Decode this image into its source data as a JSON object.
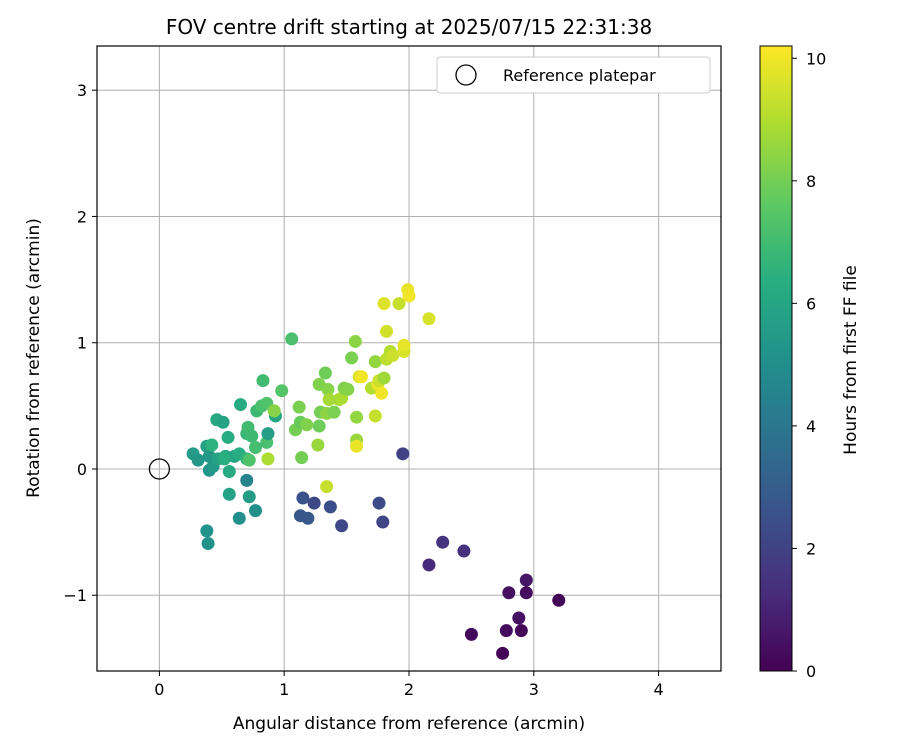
{
  "chart_data": {
    "type": "scatter",
    "title": "FOV centre drift starting at 2025/07/15 22:31:38",
    "xlabel": "Angular distance from reference (arcmin)",
    "ylabel": "Rotation from reference (arcmin)",
    "xlim": [
      -0.5,
      4.5
    ],
    "ylim": [
      -1.6,
      3.35
    ],
    "x_ticks": [
      0,
      1,
      2,
      3,
      4
    ],
    "y_ticks": [
      -1,
      0,
      1,
      2,
      3
    ],
    "grid": true,
    "legend": {
      "position": "top-right",
      "entries": [
        "Reference platepar"
      ]
    },
    "reference_point": {
      "label": "Reference platepar",
      "x": 0,
      "y": 0
    },
    "colorbar": {
      "label": "Hours from first FF file",
      "min": 0,
      "max": 10.2,
      "ticks": [
        0,
        2,
        4,
        6,
        8,
        10
      ],
      "colormap": "viridis"
    },
    "series": [
      {
        "color_by": "Hours from first FF file",
        "points": [
          {
            "x": 2.75,
            "y": -1.46,
            "c": 0.1
          },
          {
            "x": 2.5,
            "y": -1.31,
            "c": 0.2
          },
          {
            "x": 2.78,
            "y": -1.28,
            "c": 0.3
          },
          {
            "x": 2.9,
            "y": -1.28,
            "c": 0.2
          },
          {
            "x": 2.88,
            "y": -1.18,
            "c": 0.5
          },
          {
            "x": 3.2,
            "y": -1.04,
            "c": 0.1
          },
          {
            "x": 2.8,
            "y": -0.98,
            "c": 0.4
          },
          {
            "x": 2.94,
            "y": -0.98,
            "c": 0.3
          },
          {
            "x": 2.94,
            "y": -0.88,
            "c": 0.6
          },
          {
            "x": 2.16,
            "y": -0.76,
            "c": 1.2
          },
          {
            "x": 2.44,
            "y": -0.65,
            "c": 1.4
          },
          {
            "x": 2.27,
            "y": -0.58,
            "c": 1.5
          },
          {
            "x": 1.79,
            "y": -0.42,
            "c": 2.1
          },
          {
            "x": 1.46,
            "y": -0.45,
            "c": 2.2
          },
          {
            "x": 1.76,
            "y": -0.27,
            "c": 2.3
          },
          {
            "x": 1.37,
            "y": -0.3,
            "c": 2.4
          },
          {
            "x": 1.24,
            "y": -0.27,
            "c": 2.2
          },
          {
            "x": 1.15,
            "y": -0.23,
            "c": 2.6
          },
          {
            "x": 1.13,
            "y": -0.37,
            "c": 2.7
          },
          {
            "x": 1.19,
            "y": -0.39,
            "c": 2.8
          },
          {
            "x": 1.95,
            "y": 0.12,
            "c": 2.0
          },
          {
            "x": 0.7,
            "y": -0.09,
            "c": 4.5
          },
          {
            "x": 0.64,
            "y": -0.39,
            "c": 5.0
          },
          {
            "x": 0.77,
            "y": -0.33,
            "c": 5.0
          },
          {
            "x": 0.38,
            "y": -0.49,
            "c": 5.2
          },
          {
            "x": 0.39,
            "y": -0.59,
            "c": 5.2
          },
          {
            "x": 0.72,
            "y": -0.22,
            "c": 5.6
          },
          {
            "x": 0.56,
            "y": -0.2,
            "c": 5.8
          },
          {
            "x": 0.4,
            "y": -0.01,
            "c": 5.3
          },
          {
            "x": 0.43,
            "y": 0.02,
            "c": 5.5
          },
          {
            "x": 0.27,
            "y": 0.12,
            "c": 5.6
          },
          {
            "x": 0.31,
            "y": 0.07,
            "c": 5.4
          },
          {
            "x": 0.38,
            "y": 0.18,
            "c": 5.8
          },
          {
            "x": 0.4,
            "y": 0.1,
            "c": 5.4
          },
          {
            "x": 0.47,
            "y": 0.08,
            "c": 5.9
          },
          {
            "x": 0.53,
            "y": 0.1,
            "c": 6.1
          },
          {
            "x": 0.56,
            "y": -0.02,
            "c": 6.2
          },
          {
            "x": 0.6,
            "y": 0.1,
            "c": 6.0
          },
          {
            "x": 0.64,
            "y": 0.12,
            "c": 6.3
          },
          {
            "x": 0.7,
            "y": 0.08,
            "c": 6.6
          },
          {
            "x": 0.52,
            "y": 0.08,
            "c": 6.4
          },
          {
            "x": 0.55,
            "y": 0.25,
            "c": 6.3
          },
          {
            "x": 0.46,
            "y": 0.39,
            "c": 6.1
          },
          {
            "x": 0.51,
            "y": 0.37,
            "c": 5.9
          },
          {
            "x": 0.42,
            "y": 0.19,
            "c": 6.5
          },
          {
            "x": 0.65,
            "y": 0.51,
            "c": 6.2
          },
          {
            "x": 0.7,
            "y": 0.28,
            "c": 6.8
          },
          {
            "x": 0.71,
            "y": 0.33,
            "c": 7.0
          },
          {
            "x": 0.74,
            "y": 0.26,
            "c": 6.9
          },
          {
            "x": 0.77,
            "y": 0.17,
            "c": 7.1
          },
          {
            "x": 0.72,
            "y": 0.07,
            "c": 7.3
          },
          {
            "x": 0.78,
            "y": 0.46,
            "c": 6.9
          },
          {
            "x": 0.82,
            "y": 0.5,
            "c": 7.2
          },
          {
            "x": 0.83,
            "y": 0.7,
            "c": 7.0
          },
          {
            "x": 0.86,
            "y": 0.52,
            "c": 7.3
          },
          {
            "x": 0.86,
            "y": 0.21,
            "c": 7.2
          },
          {
            "x": 0.87,
            "y": 0.28,
            "c": 5.7
          },
          {
            "x": 0.87,
            "y": 0.08,
            "c": 8.9
          },
          {
            "x": 0.93,
            "y": 0.42,
            "c": 6.0
          },
          {
            "x": 0.92,
            "y": 0.46,
            "c": 8.3
          },
          {
            "x": 0.98,
            "y": 0.62,
            "c": 7.4
          },
          {
            "x": 1.06,
            "y": 1.03,
            "c": 7.2
          },
          {
            "x": 1.09,
            "y": 0.31,
            "c": 8.0
          },
          {
            "x": 1.12,
            "y": 0.49,
            "c": 8.1
          },
          {
            "x": 1.13,
            "y": 0.37,
            "c": 7.8
          },
          {
            "x": 1.14,
            "y": 0.09,
            "c": 8.0
          },
          {
            "x": 1.18,
            "y": 0.35,
            "c": 8.2
          },
          {
            "x": 1.27,
            "y": 0.19,
            "c": 8.6
          },
          {
            "x": 1.28,
            "y": 0.34,
            "c": 7.9
          },
          {
            "x": 1.28,
            "y": 0.67,
            "c": 8.2
          },
          {
            "x": 1.29,
            "y": 0.45,
            "c": 8.0
          },
          {
            "x": 1.33,
            "y": 0.76,
            "c": 7.9
          },
          {
            "x": 1.35,
            "y": 0.63,
            "c": 8.3
          },
          {
            "x": 1.34,
            "y": 0.44,
            "c": 8.4
          },
          {
            "x": 1.36,
            "y": 0.55,
            "c": 8.8
          },
          {
            "x": 1.34,
            "y": -0.14,
            "c": 9.3
          },
          {
            "x": 1.4,
            "y": 0.45,
            "c": 8.1
          },
          {
            "x": 1.44,
            "y": 0.55,
            "c": 8.8
          },
          {
            "x": 1.46,
            "y": 0.56,
            "c": 8.9
          },
          {
            "x": 1.48,
            "y": 0.64,
            "c": 8.2
          },
          {
            "x": 1.51,
            "y": 0.63,
            "c": 8.3
          },
          {
            "x": 1.54,
            "y": 0.88,
            "c": 8.1
          },
          {
            "x": 1.57,
            "y": 1.01,
            "c": 8.4
          },
          {
            "x": 1.58,
            "y": 0.41,
            "c": 8.5
          },
          {
            "x": 1.58,
            "y": 0.23,
            "c": 8.6
          },
          {
            "x": 1.58,
            "y": 0.18,
            "c": 9.9
          },
          {
            "x": 1.6,
            "y": 0.73,
            "c": 9.6
          },
          {
            "x": 1.62,
            "y": 0.73,
            "c": 10.0
          },
          {
            "x": 1.7,
            "y": 0.64,
            "c": 9.0
          },
          {
            "x": 1.73,
            "y": 0.42,
            "c": 9.3
          },
          {
            "x": 1.73,
            "y": 0.85,
            "c": 8.5
          },
          {
            "x": 1.75,
            "y": 0.67,
            "c": 9.9
          },
          {
            "x": 1.76,
            "y": 0.7,
            "c": 9.4
          },
          {
            "x": 1.78,
            "y": 0.6,
            "c": 10.0
          },
          {
            "x": 1.8,
            "y": 0.72,
            "c": 8.7
          },
          {
            "x": 1.8,
            "y": 1.31,
            "c": 9.7
          },
          {
            "x": 1.82,
            "y": 1.09,
            "c": 9.5
          },
          {
            "x": 1.82,
            "y": 0.87,
            "c": 9.2
          },
          {
            "x": 1.85,
            "y": 0.93,
            "c": 9.0
          },
          {
            "x": 1.87,
            "y": 0.9,
            "c": 9.4
          },
          {
            "x": 1.92,
            "y": 1.31,
            "c": 9.3
          },
          {
            "x": 1.96,
            "y": 0.93,
            "c": 9.6
          },
          {
            "x": 1.96,
            "y": 0.98,
            "c": 9.8
          },
          {
            "x": 1.99,
            "y": 1.42,
            "c": 9.9
          },
          {
            "x": 2.0,
            "y": 1.37,
            "c": 10.0
          },
          {
            "x": 2.16,
            "y": 1.19,
            "c": 9.6
          }
        ]
      }
    ]
  }
}
